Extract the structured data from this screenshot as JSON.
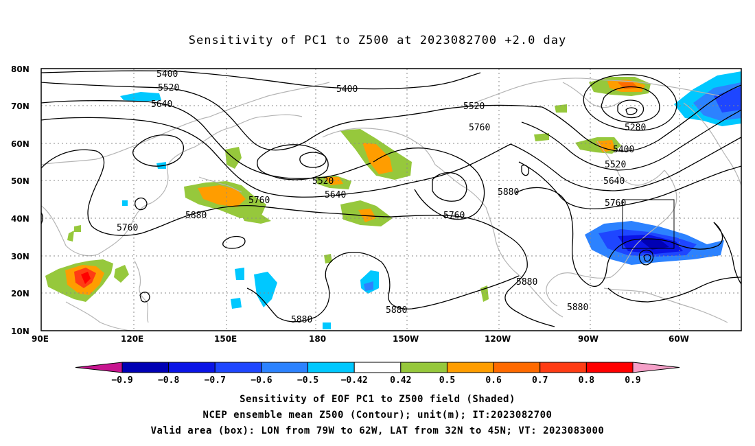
{
  "title": "Sensitivity of PC1 to Z500 at 2023082700 +2.0 day",
  "lat_labels": [
    "80N",
    "70N",
    "60N",
    "50N",
    "40N",
    "30N",
    "20N",
    "10N"
  ],
  "lon_labels": [
    "90E",
    "120E",
    "150E",
    "180",
    "150W",
    "120W",
    "90W",
    "60W"
  ],
  "contour_labels": {
    "l5400a": "5400",
    "l5520a": "5520",
    "l5640a": "5640",
    "l5400b": "5400",
    "l5520b": "5520",
    "l5760a": "5760",
    "l5520c": "5520",
    "l5640b": "5640",
    "l5760b": "5760",
    "l5880a": "5880",
    "l5760c": "5760",
    "l5880b": "5880",
    "l5760d": "5760",
    "l5280": "5280",
    "l5400c": "5400",
    "l5520d": "5520",
    "l5640c": "5640",
    "l5760e": "5760",
    "l5880c": "5880",
    "l5880d": "5880",
    "l5880e": "5880",
    "l5880f": "5880"
  },
  "colorbar": {
    "labels": [
      "-0.9",
      "-0.8",
      "-0.7",
      "-0.6",
      "-0.5",
      "-0.42",
      "0.42",
      "0.5",
      "0.6",
      "0.7",
      "0.8",
      "0.9"
    ],
    "colors": [
      "#c7158f",
      "#0000b4",
      "#0a14e6",
      "#1e46ff",
      "#2c82ff",
      "#00c8ff",
      "#ffffff",
      "#96c83c",
      "#ff9d00",
      "#ff6a00",
      "#ff3c14",
      "#ff0000",
      "#f5a0c8"
    ]
  },
  "valid_box": {
    "lon_min": "79W",
    "lon_max": "62W",
    "lat_min": "32N",
    "lat_max": "45N"
  },
  "caption": {
    "line1": "Sensitivity of EOF PC1 to Z500 field (Shaded)",
    "line2": "NCEP ensemble mean Z500 (Contour); unit(m); IT:2023082700",
    "line3": "Valid area (box): LON from 79W to 62W, LAT from 32N to 45N; VT: 2023083000"
  }
}
